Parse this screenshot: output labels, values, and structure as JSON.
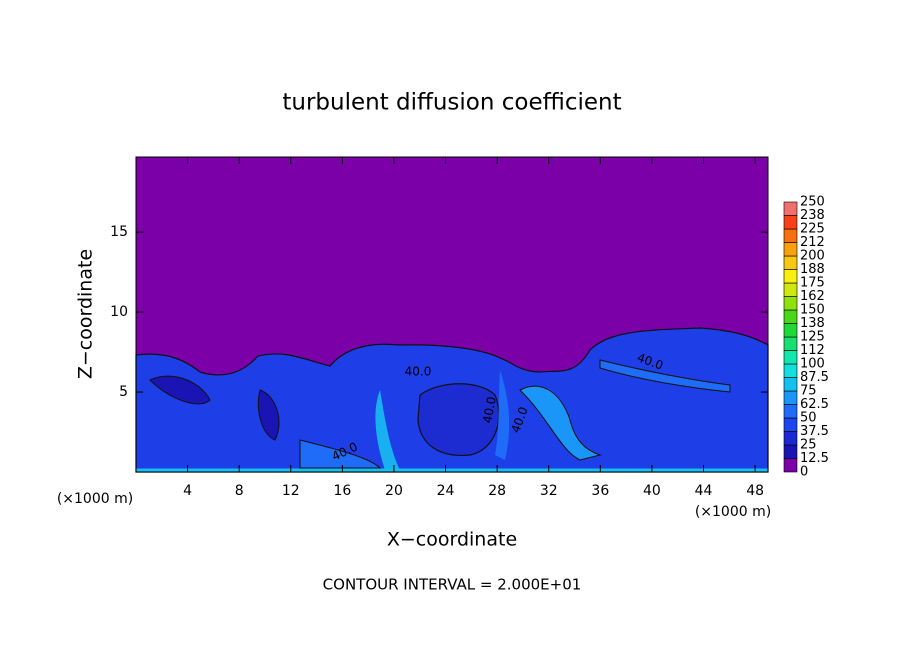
{
  "chart_data": {
    "type": "contour",
    "title": "turbulent diffusion coefficient",
    "x_label": "X−coordinate",
    "y_label": "Z−coordinate",
    "x_unit": "(×1000 m)",
    "footer": "CONTOUR INTERVAL = 2.000E+01",
    "xlim": [
      0,
      49
    ],
    "xticks": [
      4,
      8,
      12,
      16,
      20,
      24,
      28,
      32,
      36,
      40,
      44,
      48
    ],
    "ylim": [
      0,
      19.7
    ],
    "yticks": [
      5,
      10,
      15
    ],
    "contour_labels": [
      "40.0",
      "40.0",
      "40.0",
      "40.0",
      "40.0"
    ],
    "colorbar": {
      "levels": [
        0,
        12.5,
        25,
        37.5,
        50,
        62.5,
        75,
        87.5,
        100,
        112,
        125,
        138,
        150,
        162,
        175,
        188,
        200,
        212,
        225,
        238,
        250
      ],
      "colors": [
        "#7b00a8",
        "#1a14b4",
        "#1c28d4",
        "#1e46f0",
        "#1e6cf8",
        "#1a96f8",
        "#14c0f0",
        "#10e0e0",
        "#10e8b0",
        "#18e070",
        "#20d838",
        "#48d818",
        "#90e010",
        "#d0e810",
        "#f8f010",
        "#f8c810",
        "#f8a010",
        "#f87010",
        "#f84018",
        "#f07070"
      ]
    }
  }
}
